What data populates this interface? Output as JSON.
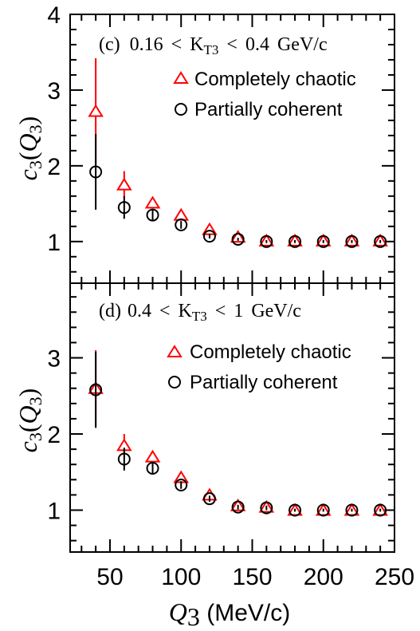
{
  "chart_data": [
    {
      "type": "scatter",
      "panel_label": {
        "prefix": "(c)",
        "kt_low": "0.16",
        "kt_var": "K",
        "kt_sub": "T3",
        "kt_high": "0.4",
        "unit": "GeV/c"
      },
      "ylabel": {
        "main": "c",
        "sub": "3",
        "open": "(",
        "var": "Q",
        "varsub": "3",
        "close": ")"
      },
      "ylim": [
        0.45,
        4.0
      ],
      "yticks": [
        1,
        2,
        3,
        4
      ],
      "legend_position": "top-right",
      "series": [
        {
          "name": "Completely chaotic",
          "marker": "triangle",
          "color": "#ff0000",
          "x": [
            40,
            60,
            80,
            100,
            120,
            140,
            160,
            180,
            200,
            220,
            240
          ],
          "y": [
            2.72,
            1.75,
            1.51,
            1.35,
            1.16,
            1.06,
            1.01,
            1.01,
            1.01,
            1.01,
            1.01
          ],
          "err": [
            0.7,
            0.18,
            0.07,
            0.04,
            0.03,
            0.02,
            0.02,
            0.02,
            0.02,
            0.02,
            0.02
          ]
        },
        {
          "name": "Partially coherent",
          "marker": "circle",
          "color": "#000000",
          "x": [
            40,
            60,
            80,
            100,
            120,
            140,
            160,
            180,
            200,
            220,
            240
          ],
          "y": [
            1.92,
            1.45,
            1.35,
            1.22,
            1.07,
            1.03,
            1.0,
            1.0,
            1.0,
            1.0,
            1.0
          ],
          "err": [
            0.5,
            0.15,
            0.07,
            0.05,
            0.03,
            0.02,
            0.02,
            0.02,
            0.02,
            0.02,
            0.02
          ]
        }
      ]
    },
    {
      "type": "scatter",
      "panel_label": {
        "prefix": "(d)",
        "kt_low": "0.4",
        "kt_var": "K",
        "kt_sub": "T3",
        "kt_high": "1",
        "unit": "GeV/c"
      },
      "ylabel": {
        "main": "c",
        "sub": "3",
        "open": "(",
        "var": "Q",
        "varsub": "3",
        "close": ")"
      },
      "ylim": [
        0.45,
        3.98
      ],
      "yticks": [
        1,
        2,
        3
      ],
      "legend_position": "top-right",
      "series": [
        {
          "name": "Completely chaotic",
          "marker": "triangle",
          "color": "#ff0000",
          "x": [
            40,
            60,
            80,
            100,
            120,
            140,
            160,
            180,
            200,
            220,
            240
          ],
          "y": [
            2.6,
            1.85,
            1.7,
            1.43,
            1.2,
            1.06,
            1.04,
            1.0,
            1.0,
            1.0,
            1.0
          ],
          "err": [
            0.5,
            0.15,
            0.08,
            0.05,
            0.04,
            0.03,
            0.03,
            0.02,
            0.02,
            0.02,
            0.02
          ]
        },
        {
          "name": "Partially coherent",
          "marker": "circle",
          "color": "#000000",
          "x": [
            40,
            60,
            80,
            100,
            120,
            140,
            160,
            180,
            200,
            220,
            240
          ],
          "y": [
            2.58,
            1.67,
            1.55,
            1.33,
            1.15,
            1.04,
            1.03,
            1.0,
            1.0,
            1.0,
            1.0
          ],
          "err": [
            0.5,
            0.15,
            0.08,
            0.05,
            0.04,
            0.03,
            0.03,
            0.02,
            0.02,
            0.02,
            0.02
          ]
        }
      ]
    }
  ],
  "xaxis": {
    "xlim": [
      22,
      250
    ],
    "xticks": [
      50,
      100,
      150,
      200,
      250
    ],
    "label_var": "Q",
    "label_sub": "3",
    "label_unit": " (MeV/c)"
  }
}
